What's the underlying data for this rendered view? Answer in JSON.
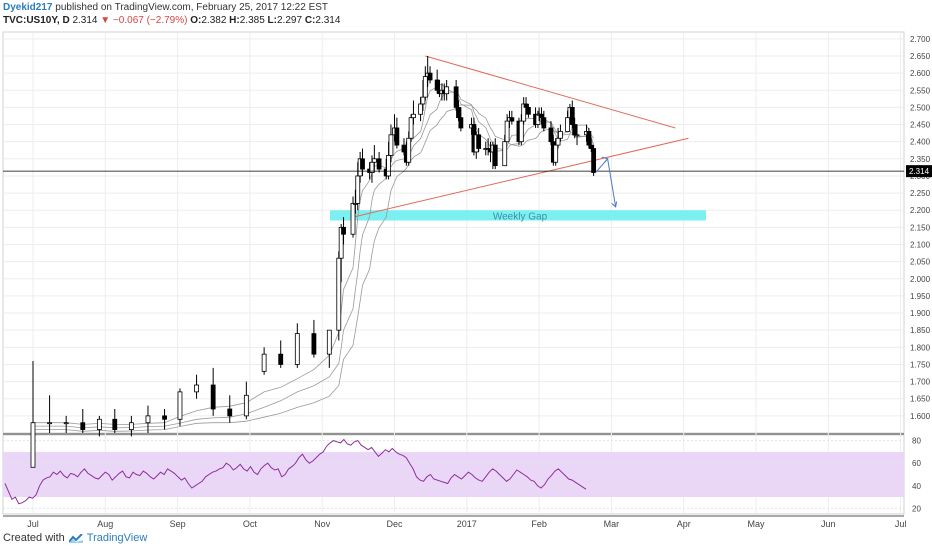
{
  "header": {
    "author": "Dyekid217",
    "published": "published on TradingView.com, February 25, 2017 12:22 EST",
    "symbol": "TVC:US10Y, D",
    "last": "2.314",
    "change": "−0.067 (−2.79%)",
    "o_label": "O:",
    "o": "2.382",
    "h_label": "H:",
    "h": "2.385",
    "l_label": "L:",
    "l": "2.297",
    "c_label": "C:",
    "c": "2.314"
  },
  "footer": {
    "created_with": "Created with",
    "brand": "TradingView"
  },
  "colors": {
    "candle_up": "#ffffff",
    "candle_down": "#000000",
    "wick": "#000000",
    "trend": "#e06a5a",
    "gap_box": "#7cf0f0",
    "gap_text": "#3a8fa8",
    "rsi_line": "#8e2f9a",
    "rsi_band": "#ead7f7",
    "arrow": "#4a78c8",
    "price_line": "#000000"
  },
  "chart_data": [
    {
      "type": "candlestick",
      "title": "",
      "ylim": [
        1.55,
        2.72
      ],
      "y_ticks": [
        "2.700",
        "2.650",
        "2.600",
        "2.550",
        "2.500",
        "2.450",
        "2.400",
        "2.350",
        "2.300",
        "2.250",
        "2.200",
        "2.150",
        "2.100",
        "2.050",
        "2.000",
        "1.950",
        "1.900",
        "1.850",
        "1.800",
        "1.750",
        "1.700",
        "1.650",
        "1.600"
      ],
      "current_price_label": "2.314",
      "x_ticks": [
        "Jul",
        "Aug",
        "Sep",
        "Oct",
        "Nov",
        "Dec",
        "2017",
        "Feb",
        "Mar",
        "Apr",
        "May",
        "Jun",
        "Jul"
      ],
      "x_tick_month_index": [
        0,
        1,
        2,
        3,
        4,
        5,
        6,
        7,
        8,
        9,
        10,
        11,
        12
      ],
      "annotations": [
        "Weekly Gap"
      ],
      "gap_zone": [
        2.17,
        2.2
      ],
      "trendlines": [
        {
          "from": [
            "Nov 14",
            2.18
          ],
          "to": [
            "Apr 3",
            2.41
          ]
        },
        {
          "from": [
            "Dec 14",
            2.65
          ],
          "to": [
            "Mar 28",
            2.44
          ]
        }
      ],
      "candles": {
        "dates": [
          "Jul 1",
          "Jul 8",
          "Jul 15",
          "Jul 22",
          "Jul 29",
          "Aug 5",
          "Aug 12",
          "Aug 19",
          "Aug 26",
          "Sep 2",
          "Sep 9",
          "Sep 16",
          "Sep 23",
          "Sep 30",
          "Oct 7",
          "Oct 14",
          "Oct 21",
          "Oct 28",
          "Nov 4",
          "Nov 8",
          "Nov 9",
          "Nov 10",
          "Nov 14",
          "Nov 15",
          "Nov 16",
          "Nov 17",
          "Nov 18",
          "Nov 21",
          "Nov 22",
          "Nov 23",
          "Nov 25",
          "Nov 28",
          "Nov 29",
          "Nov 30",
          "Dec 1",
          "Dec 2",
          "Dec 5",
          "Dec 6",
          "Dec 7",
          "Dec 8",
          "Dec 9",
          "Dec 12",
          "Dec 13",
          "Dec 14",
          "Dec 15",
          "Dec 16",
          "Dec 19",
          "Dec 20",
          "Dec 21",
          "Dec 22",
          "Dec 23",
          "Dec 27",
          "Dec 28",
          "Dec 29",
          "Jan 3",
          "Jan 4",
          "Jan 5",
          "Jan 6",
          "Jan 9",
          "Jan 10",
          "Jan 11",
          "Jan 12",
          "Jan 13",
          "Jan 17",
          "Jan 18",
          "Jan 19",
          "Jan 20",
          "Jan 23",
          "Jan 24",
          "Jan 25",
          "Jan 26",
          "Jan 27",
          "Jan 30",
          "Jan 31",
          "Feb 1",
          "Feb 2",
          "Feb 3",
          "Feb 6",
          "Feb 7",
          "Feb 8",
          "Feb 9",
          "Feb 10",
          "Feb 13",
          "Feb 14",
          "Feb 15",
          "Feb 16",
          "Feb 17",
          "Feb 21",
          "Feb 22",
          "Feb 23",
          "Feb 24"
        ],
        "open": [
          1.45,
          1.58,
          1.58,
          1.58,
          1.56,
          1.59,
          1.56,
          1.58,
          1.6,
          1.59,
          1.67,
          1.69,
          1.62,
          1.6,
          1.73,
          1.78,
          1.75,
          1.84,
          1.78,
          1.85,
          2.06,
          2.15,
          2.13,
          2.22,
          2.22,
          2.3,
          2.35,
          2.32,
          2.31,
          2.34,
          2.35,
          2.32,
          2.3,
          2.36,
          2.42,
          2.44,
          2.39,
          2.37,
          2.34,
          2.41,
          2.47,
          2.48,
          2.51,
          2.53,
          2.59,
          2.6,
          2.58,
          2.55,
          2.54,
          2.55,
          2.54,
          2.56,
          2.5,
          2.47,
          2.44,
          2.45,
          2.37,
          2.42,
          2.38,
          2.38,
          2.38,
          2.37,
          2.39,
          2.33,
          2.4,
          2.46,
          2.47,
          2.46,
          2.4,
          2.46,
          2.51,
          2.5,
          2.48,
          2.45,
          2.48,
          2.48,
          2.47,
          2.44,
          2.4,
          2.34,
          2.39,
          2.41,
          2.43,
          2.47,
          2.5,
          2.45,
          2.42,
          2.42,
          2.43,
          2.39,
          2.38
        ],
        "high": [
          1.76,
          1.66,
          1.6,
          1.62,
          1.6,
          1.62,
          1.6,
          1.63,
          1.62,
          1.68,
          1.72,
          1.74,
          1.66,
          1.7,
          1.8,
          1.82,
          1.87,
          1.88,
          1.85,
          2.08,
          2.16,
          2.18,
          2.24,
          2.26,
          2.34,
          2.37,
          2.38,
          2.34,
          2.36,
          2.39,
          2.37,
          2.35,
          2.4,
          2.45,
          2.48,
          2.47,
          2.41,
          2.4,
          2.43,
          2.48,
          2.52,
          2.53,
          2.58,
          2.62,
          2.65,
          2.62,
          2.61,
          2.58,
          2.57,
          2.57,
          2.58,
          2.58,
          2.52,
          2.5,
          2.47,
          2.47,
          2.43,
          2.44,
          2.4,
          2.41,
          2.4,
          2.4,
          2.41,
          2.42,
          2.48,
          2.49,
          2.49,
          2.47,
          2.48,
          2.53,
          2.53,
          2.51,
          2.5,
          2.49,
          2.5,
          2.5,
          2.49,
          2.46,
          2.42,
          2.41,
          2.44,
          2.45,
          2.49,
          2.51,
          2.52,
          2.47,
          2.45,
          2.45,
          2.44,
          2.41,
          2.39
        ],
        "low": [
          1.45,
          1.55,
          1.55,
          1.55,
          1.54,
          1.55,
          1.54,
          1.55,
          1.56,
          1.57,
          1.65,
          1.6,
          1.58,
          1.59,
          1.72,
          1.74,
          1.74,
          1.77,
          1.74,
          1.82,
          1.99,
          2.1,
          2.12,
          2.19,
          2.2,
          2.28,
          2.3,
          2.29,
          2.28,
          2.31,
          2.31,
          2.29,
          2.29,
          2.34,
          2.4,
          2.38,
          2.36,
          2.33,
          2.33,
          2.4,
          2.45,
          2.46,
          2.49,
          2.52,
          2.56,
          2.57,
          2.54,
          2.53,
          2.52,
          2.52,
          2.52,
          2.49,
          2.46,
          2.43,
          2.42,
          2.36,
          2.35,
          2.37,
          2.36,
          2.36,
          2.34,
          2.32,
          2.32,
          2.33,
          2.4,
          2.44,
          2.45,
          2.39,
          2.39,
          2.45,
          2.48,
          2.47,
          2.44,
          2.44,
          2.46,
          2.45,
          2.43,
          2.39,
          2.33,
          2.33,
          2.38,
          2.4,
          2.43,
          2.46,
          2.44,
          2.41,
          2.39,
          2.4,
          2.38,
          2.37,
          2.3
        ],
        "close": [
          1.58,
          1.58,
          1.58,
          1.56,
          1.59,
          1.56,
          1.58,
          1.6,
          1.59,
          1.67,
          1.69,
          1.62,
          1.6,
          1.66,
          1.78,
          1.75,
          1.84,
          1.78,
          1.85,
          2.06,
          2.15,
          2.13,
          2.22,
          2.22,
          2.3,
          2.35,
          2.32,
          2.31,
          2.34,
          2.35,
          2.32,
          2.3,
          2.36,
          2.42,
          2.44,
          2.39,
          2.37,
          2.34,
          2.41,
          2.47,
          2.48,
          2.51,
          2.53,
          2.59,
          2.6,
          2.58,
          2.55,
          2.54,
          2.55,
          2.54,
          2.56,
          2.5,
          2.47,
          2.44,
          2.45,
          2.37,
          2.42,
          2.38,
          2.38,
          2.38,
          2.37,
          2.39,
          2.33,
          2.4,
          2.46,
          2.47,
          2.46,
          2.4,
          2.46,
          2.51,
          2.5,
          2.48,
          2.45,
          2.48,
          2.48,
          2.47,
          2.44,
          2.4,
          2.34,
          2.39,
          2.41,
          2.43,
          2.47,
          2.5,
          2.45,
          2.42,
          2.42,
          2.43,
          2.39,
          2.38,
          2.31
        ]
      }
    },
    {
      "type": "line",
      "title": "",
      "ylim": [
        15,
        85
      ],
      "y_ticks": [
        "80",
        "60",
        "40",
        "20"
      ],
      "band": [
        30,
        70
      ],
      "series": [
        {
          "values": [
            42,
            35,
            28,
            30,
            24,
            25,
            27,
            30,
            29,
            32,
            40,
            45,
            47,
            48,
            52,
            50,
            53,
            49,
            47,
            51,
            50,
            48,
            52,
            55,
            51,
            49,
            47,
            46,
            49,
            52,
            50,
            45,
            48,
            51,
            53,
            48,
            47,
            52,
            50,
            49,
            53,
            51,
            48,
            46,
            49,
            52,
            50,
            55,
            53,
            51,
            48,
            45,
            47,
            42,
            38,
            40,
            42,
            44,
            48,
            50,
            52,
            53,
            55,
            56,
            60,
            58,
            54,
            56,
            59,
            55,
            53,
            57,
            52,
            50,
            55,
            58,
            60,
            56,
            54,
            55,
            48,
            50,
            55,
            57,
            60,
            65,
            68,
            63,
            60,
            62,
            65,
            68,
            70,
            75,
            78,
            80,
            79,
            78,
            81,
            77,
            76,
            79,
            80,
            76,
            74,
            72,
            74,
            70,
            66,
            69,
            72,
            70,
            73,
            70,
            68,
            67,
            65,
            60,
            55,
            48,
            45,
            44,
            48,
            50,
            46,
            45,
            44,
            43,
            42,
            47,
            50,
            48,
            46,
            49,
            52,
            50,
            47,
            45,
            44,
            48,
            52,
            55,
            53,
            50,
            47,
            44,
            46,
            50,
            54,
            52,
            50,
            48,
            45,
            44,
            40,
            38,
            41,
            46,
            49,
            53,
            55,
            52,
            49,
            46,
            45,
            43,
            41,
            39,
            37
          ]
        }
      ]
    }
  ]
}
